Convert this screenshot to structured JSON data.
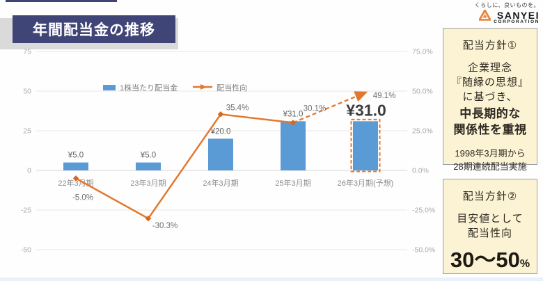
{
  "header": {
    "title": "年間配当金の推移"
  },
  "brand": {
    "tagline": "くらしに、良いものを。",
    "name": "SANYEI",
    "subname": "CORPORATION",
    "logo_color": "#e8833a"
  },
  "chart_data": {
    "type": "bar",
    "title": "年間配当金の推移",
    "categories": [
      "22年3月期",
      "23年3月期",
      "24年3月期",
      "25年3月期",
      "26年3月期(予想)"
    ],
    "series": [
      {
        "name": "1株当たり配当金",
        "type": "bar",
        "values": [
          5.0,
          5.0,
          20.0,
          31.0,
          31.0
        ],
        "value_labels": [
          "¥5.0",
          "¥5.0",
          "¥20.0",
          "¥31.0",
          "¥31.0"
        ],
        "color": "#5b9bd5"
      },
      {
        "name": "配当性向",
        "type": "line",
        "values": [
          -5.0,
          -30.3,
          35.4,
          30.1,
          49.1
        ],
        "value_labels": [
          "-5.0%",
          "-30.3%",
          "35.4%",
          "30.1%",
          "49.1%"
        ],
        "color": "#e2782f",
        "dashed_from_index": 3
      }
    ],
    "left_axis_ticks": [
      75,
      50,
      25,
      0,
      -25,
      -50
    ],
    "right_axis_tick_labels": [
      "75.0%",
      "50.0%",
      "25.0%",
      "0.0%",
      "-25.0%",
      "-50.0%"
    ],
    "ylim": [
      -50,
      75
    ],
    "grid": true,
    "legend_position": "top",
    "forecast_index": 4
  },
  "policy_boxes": {
    "box1": {
      "title": "配当方針①",
      "body_lines": [
        "企業理念",
        "『随縁の思想』",
        "に基づき、"
      ],
      "bold_lines": [
        "中長期的な",
        "関係性を重視"
      ],
      "note_lines": [
        "1998年3月期から",
        "28期連続配当実施"
      ]
    },
    "box2": {
      "title": "配当方針②",
      "body_lines": [
        "目安値として",
        "配当性向"
      ],
      "big_value": "30〜50",
      "big_unit": "%"
    }
  },
  "colors": {
    "accent_navy": "#404577",
    "bar_blue": "#5b9bd5",
    "line_orange": "#e2782f",
    "box_bg": "#fcf3d4",
    "grid_gray": "#e4e4e4",
    "axis_text": "#a9a9a9"
  }
}
